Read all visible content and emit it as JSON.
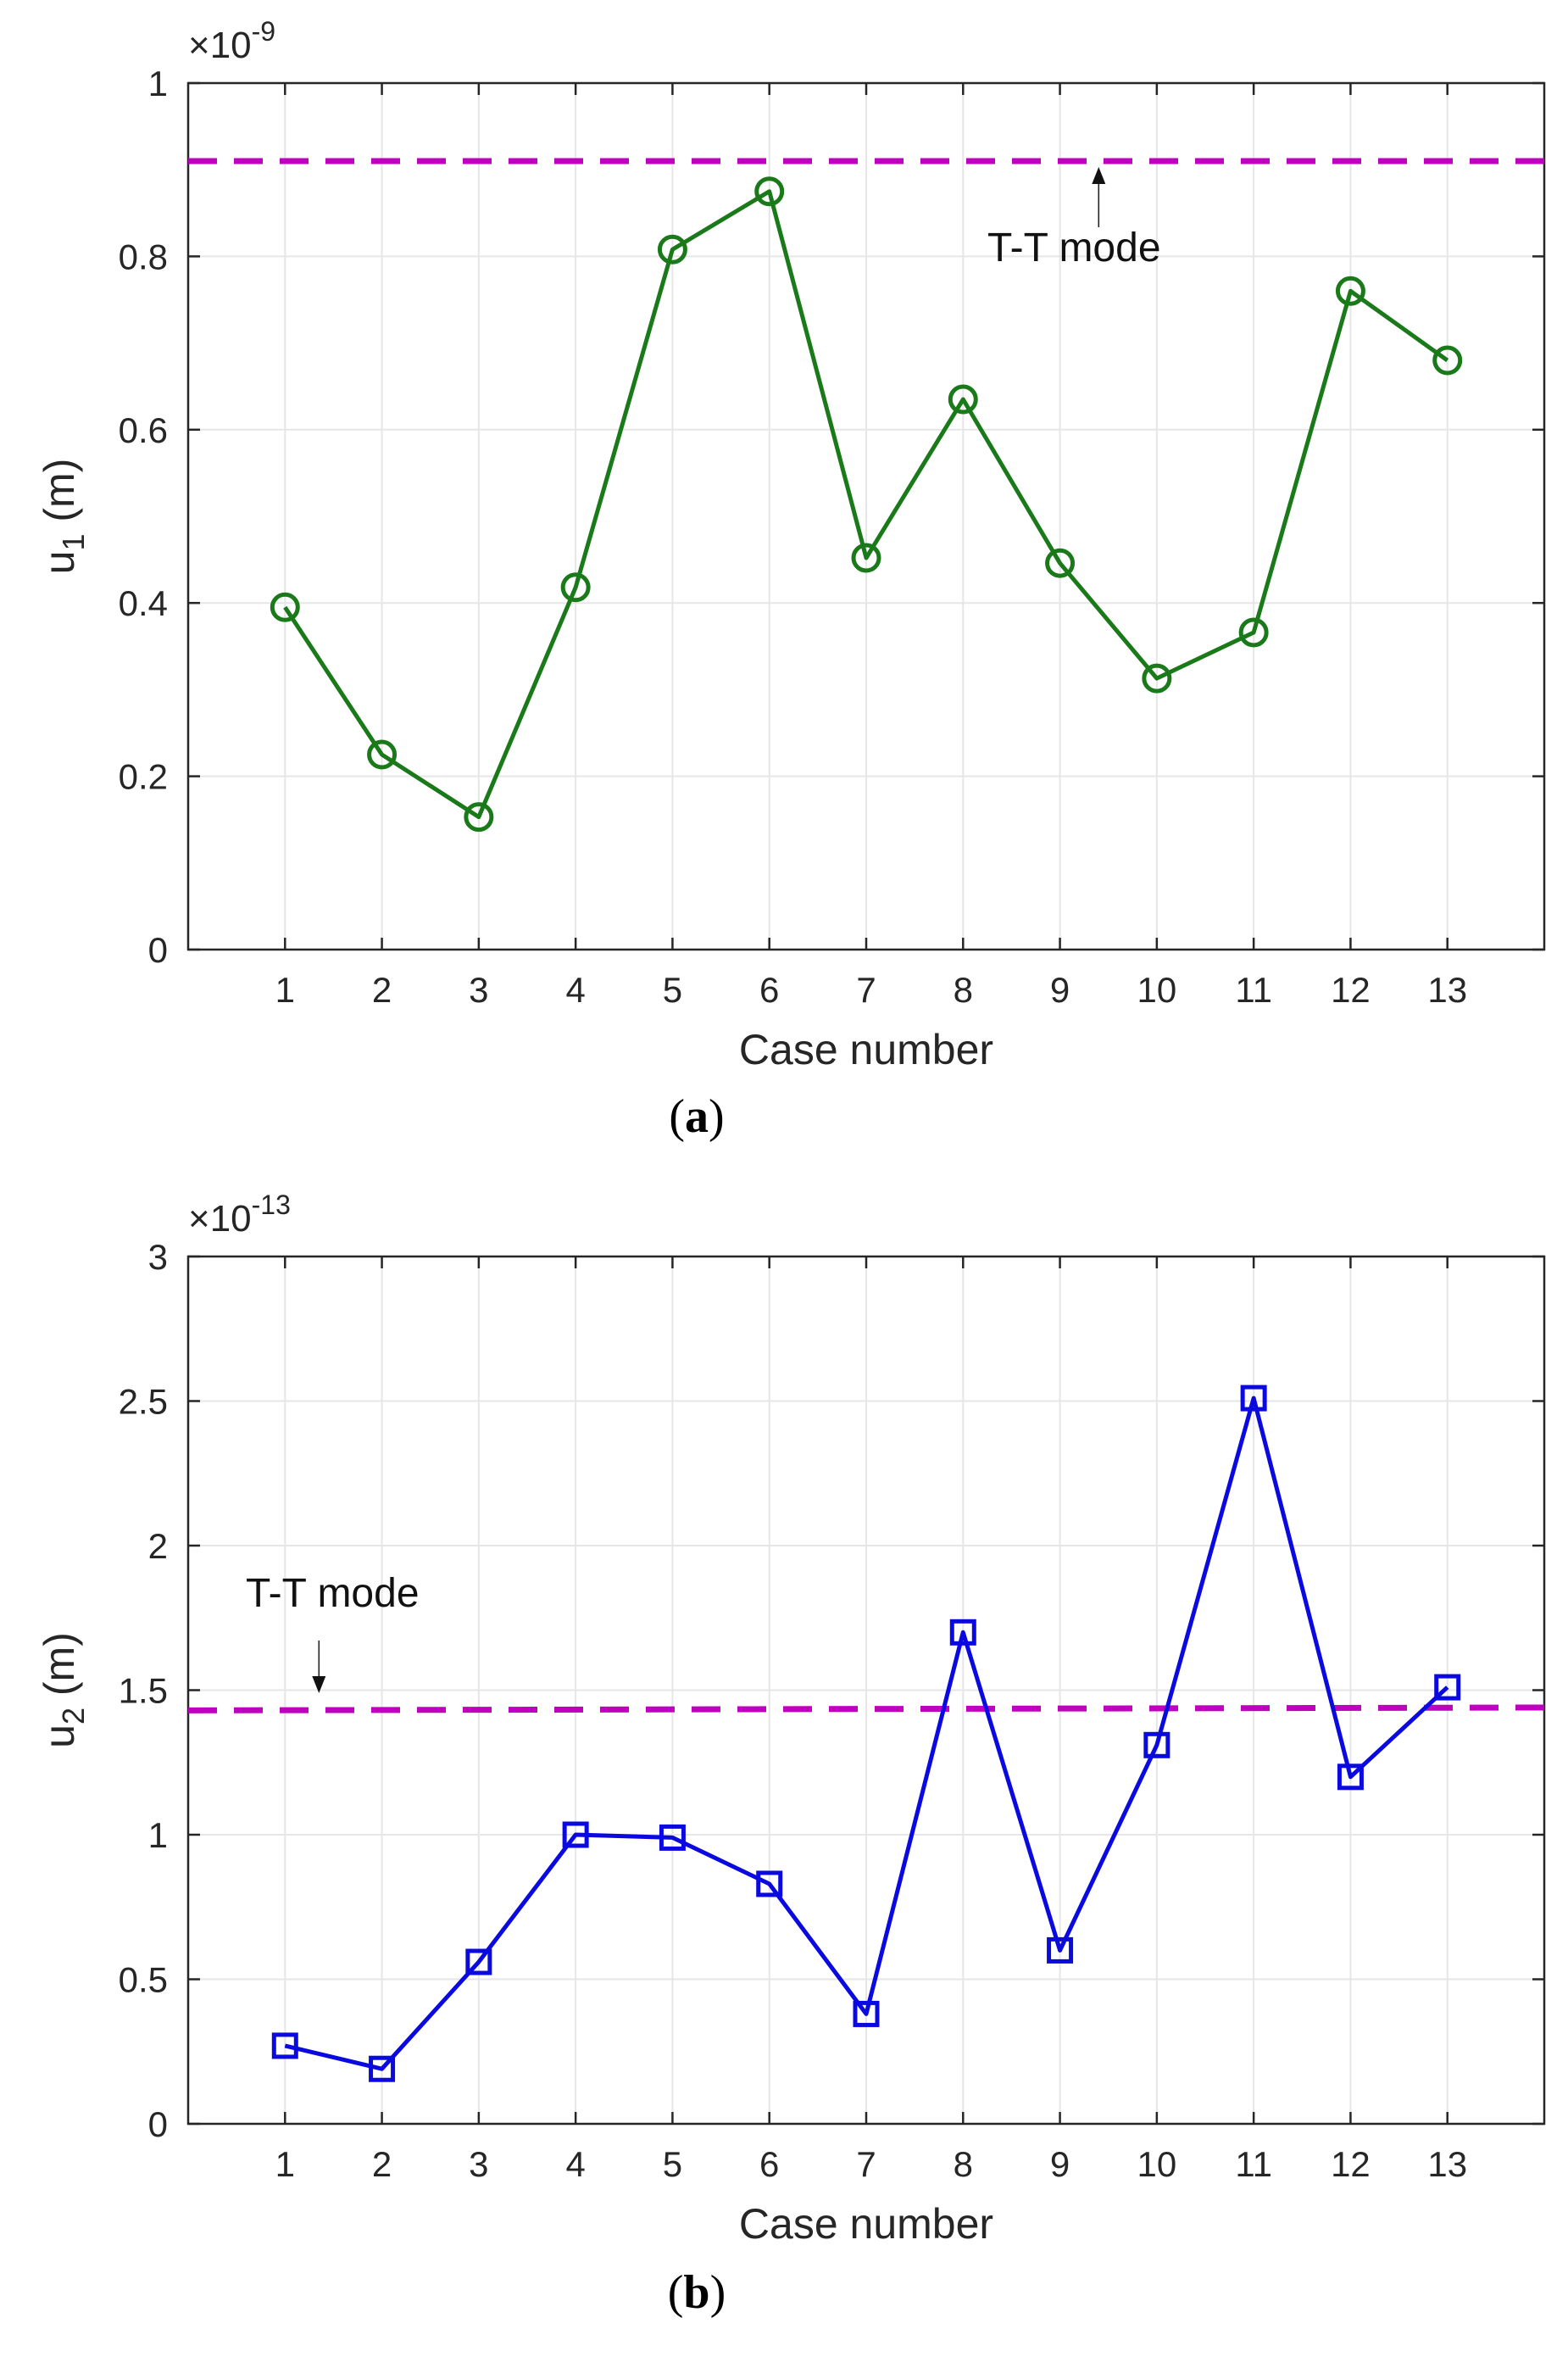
{
  "chart_data": [
    {
      "type": "line",
      "panel_label": "a",
      "xlabel": "Case number",
      "ylabel_main": "u",
      "ylabel_sub": "1",
      "ylabel_unit": " (m)",
      "exponent_base": "×10",
      "exponent_power": "-9",
      "x": [
        1,
        2,
        3,
        4,
        5,
        6,
        7,
        8,
        9,
        10,
        11,
        12,
        13
      ],
      "xlim": [
        0,
        14
      ],
      "xticks": [
        1,
        2,
        3,
        4,
        5,
        6,
        7,
        8,
        9,
        10,
        11,
        12,
        13
      ],
      "ylim": [
        0,
        1
      ],
      "yticks": [
        0,
        0.2,
        0.4,
        0.6,
        0.8,
        1
      ],
      "ytick_labels": [
        "0",
        "0.2",
        "0.4",
        "0.6",
        "0.8",
        "1"
      ],
      "grid": true,
      "series": [
        {
          "name": "u1",
          "values": [
            0.395,
            0.225,
            0.153,
            0.418,
            0.808,
            0.875,
            0.452,
            0.635,
            0.446,
            0.313,
            0.366,
            0.76,
            0.68
          ],
          "color": "#1a7a1a",
          "marker": "circle"
        }
      ],
      "reference_line": {
        "label": "T-T mode",
        "y_start": 0.91,
        "y_end": 0.91,
        "color": "#bf00bf",
        "annotation_x": 9.4
      }
    },
    {
      "type": "line",
      "panel_label": "b",
      "xlabel": "Case number",
      "ylabel_main": "u",
      "ylabel_sub": "2",
      "ylabel_unit": " (m)",
      "exponent_base": "×10",
      "exponent_power": "-13",
      "x": [
        1,
        2,
        3,
        4,
        5,
        6,
        7,
        8,
        9,
        10,
        11,
        12,
        13
      ],
      "xlim": [
        0,
        14
      ],
      "xticks": [
        1,
        2,
        3,
        4,
        5,
        6,
        7,
        8,
        9,
        10,
        11,
        12,
        13
      ],
      "ylim": [
        0,
        3
      ],
      "yticks": [
        0,
        0.5,
        1,
        1.5,
        2,
        2.5,
        3
      ],
      "ytick_labels": [
        "0",
        "0.5",
        "1",
        "1.5",
        "2",
        "2.5",
        "3"
      ],
      "grid": true,
      "series": [
        {
          "name": "u2",
          "values": [
            0.27,
            0.19,
            0.56,
            1.0,
            0.99,
            0.83,
            0.38,
            1.7,
            0.6,
            1.31,
            2.51,
            1.2,
            1.51
          ],
          "color": "#0a0ae0",
          "marker": "square"
        }
      ],
      "reference_line": {
        "label": "T-T mode",
        "y_start": 1.43,
        "y_end": 1.44,
        "color": "#bf00bf",
        "annotation_x": 1.35
      }
    }
  ]
}
